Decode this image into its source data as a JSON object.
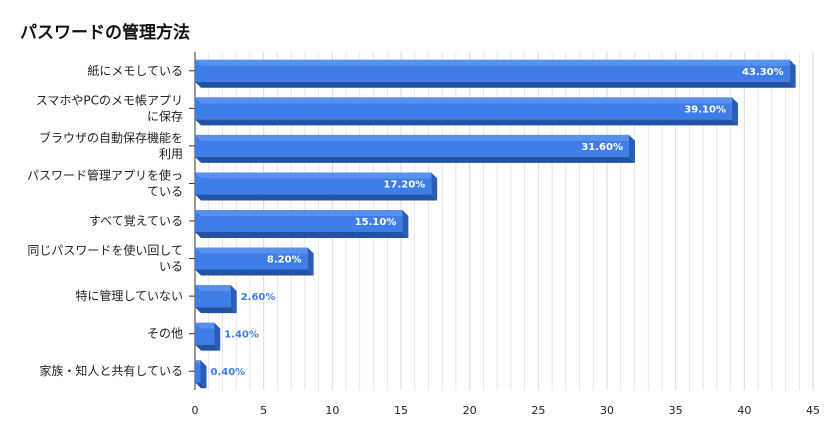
{
  "title": "パスワードの管理方法",
  "colors": {
    "bar_face": "#3f7ee8",
    "bar_top": "#6f9ff0",
    "bar_side": "#2a5db8",
    "bar_bottom": "#2252a6",
    "value_inside": "#ffffff",
    "value_outside": "#3f7ee8",
    "grid": "#d9d9d9",
    "axis": "#333333"
  },
  "chart_data": {
    "type": "bar",
    "orientation": "horizontal",
    "style": "3d",
    "categories": [
      [
        "紙にメモしている"
      ],
      [
        "スマホやPCのメモ帳アプリ",
        "に保存"
      ],
      [
        "ブラウザの自動保存機能を",
        "利用"
      ],
      [
        "パスワード管理アプリを使っ",
        "ている"
      ],
      [
        "すべて覚えている"
      ],
      [
        "同じパスワードを使い回して",
        "いる"
      ],
      [
        "特に管理していない"
      ],
      [
        "その他"
      ],
      [
        "家族・知人と共有している"
      ]
    ],
    "values": [
      43.3,
      39.1,
      31.6,
      17.2,
      15.1,
      8.2,
      2.6,
      1.4,
      0.4
    ],
    "value_labels": [
      "43.30%",
      "39.10%",
      "31.60%",
      "17.20%",
      "15.10%",
      "8.20%",
      "2.60%",
      "1.40%",
      "0.40%"
    ],
    "xlim": [
      0,
      45
    ],
    "x_ticks": [
      0,
      5,
      10,
      15,
      20,
      25,
      30,
      35,
      40,
      45
    ],
    "grid": "vertical",
    "xlabel": "",
    "ylabel": ""
  }
}
